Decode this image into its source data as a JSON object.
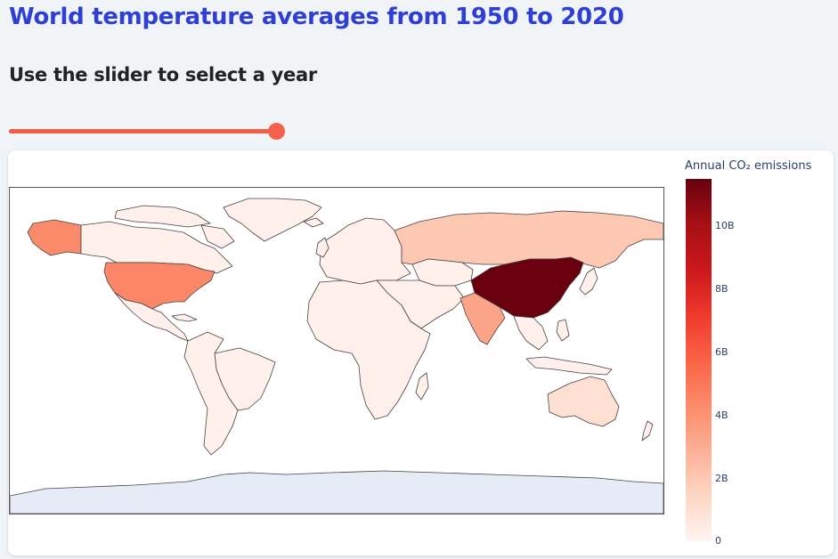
{
  "header": {
    "title": "World temperature averages from 1950 to 2020",
    "subtitle": "Use the slider to select a year"
  },
  "slider": {
    "value_fraction": 1.0
  },
  "colorbar": {
    "title": "Annual CO₂ emissions",
    "ticks": [
      "10B",
      "8B",
      "6B",
      "4B",
      "2B",
      "0"
    ],
    "colorscale": [
      "#fff5f0",
      "#fdd2bf",
      "#fc9272",
      "#fb6a4a",
      "#ef3b2c",
      "#cb181d",
      "#a50f15",
      "#67000d"
    ]
  },
  "map": {
    "colors": {
      "ocean": "#ffffff",
      "border": "#444444",
      "very_low": "#fff0eb",
      "low": "#fee0d2",
      "russia": "#fcc8b2",
      "india": "#fca487",
      "alaska": "#fb8a6a",
      "usa": "#fb8668",
      "china": "#6a000d",
      "antarctica": "#e5ecf6"
    }
  }
}
